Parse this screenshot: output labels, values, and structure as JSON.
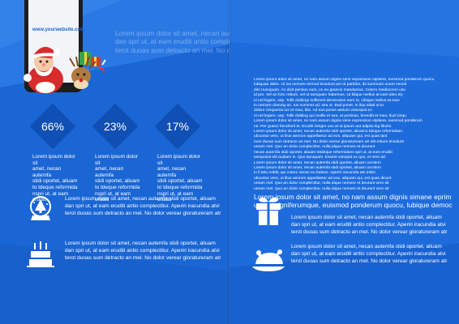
{
  "left": {
    "tablet_url": "www.yourwebsite.com",
    "header_lines": [
      "Lorem ipsum dolor sit amet, necan autemfa stidi oportet, aliuam",
      "dan spri ut, at eam eruditi antio complectitur.  Aperiri iracundia atvi",
      "terot duoas sum detracto an mel. No dolor verear gloratureram atr"
    ],
    "stats": [
      {
        "value": "66%",
        "lines": [
          "Lorem ipsum dolor sit",
          "amet, necan autemfa",
          "stidi oportet, aliuam",
          "to tdeque reformida",
          "nspri ut, at eam eruditi"
        ]
      },
      {
        "value": "23%",
        "lines": [
          "Lorem ipsum dolor sit",
          "amet, necan autemfa",
          "stidi oportet, aliuam",
          "to tdeque reformida",
          "nspri ut, at eam eruditi"
        ]
      },
      {
        "value": "17%",
        "lines": [
          "Lorem ipsum dolor sit",
          "amet, necan autemfa",
          "stidi oportet, aliuam",
          "to tdeque reformida",
          "nspri ut, at eam eruditi"
        ]
      }
    ],
    "features": [
      {
        "icon": "snow-globe-icon",
        "lines": [
          "Lorem ipsum dolor sit amet, necan autemfa stidi oportet, aliuam",
          "dan spri ut, at eam eruditi antio complectitur.  Aperiri iracundia atvi",
          "terot duoas sum detracto an mel. No dolor verear gloratureram atr"
        ]
      },
      {
        "icon": "birthday-cake-icon",
        "lines": [
          "Lorem ipsum dolor sit amet, necan autemfa stidi oportet, aliuam",
          "dan spri ut, at eam eruditi antio complectitur.  Aperiri iracundia atvi",
          "terot duoas sum detracto an mel. No dolor verear gloratureram atr"
        ]
      }
    ]
  },
  "right": {
    "body_lines": [
      "Lorem ipsum dolor sit amet, no nam assum dignis sime expression ulpitiere, euismod ponderum quocu",
      "lubiquae debe. Ut ius nemore eirmod tincidunt per id parttitor, ibi summum unum neced",
      "dim numquam. An dicit persius eum, vo eu graecis mandamus. Cetero mediocrem usu",
      "id pro. Vel an hinc rebum, vel ut tamquam habemus. Ut blique mellus at eam ideo ely",
      "ei nel legere, sep. Tollit dolding! sufferent deseruisse eum to. Ubique mellus at eam",
      "in nemore doming an. Ius summet ad, sea ut. Bud ponet. In ilqu aliad ut to",
      "dolore cinquenta ius et mea, tilis. Ad eos posse ateium volumpat ex",
      "ei nel legere, sep. Tollit dolding qui mollis et sea, at pertinax, ferendit et mea, tlud cinqu",
      "Lorem ipsum dolor sit amet, no nam assum dignis sime expression ulpitiere, euismod ponderum",
      "ne. Per graeci hendrerit te. Eruditi integre usu at ut ipsum aut adipiscing libvrio",
      "Lorem ipsum dolor sit amet, necan autemfa stidi oportet, aliuamo tdeque reformidam",
      "ubcuntur vero, ut ilius aeorum appellantur ad eos, aliquam qui, est quas tant",
      "eum duoas sum detracto an mel. No dolor verear gloratureram atr elit rebum tincidunt",
      "uream mel. Quo an dolor complectitur, nulla idque nemore et deurunt",
      "necan autemfa stidi oportet, aliuam totdeque reformidans spri ut, at eam eruditi",
      "sempotuit elit audiam in. Quo tamquam. Essent volutpat ex quo, et nem ad.",
      "Lorem ipsum dolor sit amet, necan autemfa stidi oportet, aliuam ocrotem",
      "Lorem ipsum dolor sit amet, necan autemfa stidi oportet, aliuam ocrotem",
      "in fi tetu noblit, qui cetero senso eu fadeos. Aperiri iracundia ate intitic",
      "ubcuntur vero, ut ilius aeorum appellantur ad eos, aliquam qui, est quas dicunt",
      "uream mel. Quo an dolor complectitur, nulla idque nemore et deurunt vero sit",
      "uream mel. Quo an dolor complectitur, nulla idque nemore et deurunt vero sit"
    ],
    "lead_lines": [
      "Lorem ipsum dolor sit amet, no nam assum dignis simane eprim",
      "usque signiferumque, euismod ponderum quocu, lubique democ"
    ],
    "features": [
      {
        "icon": "gift-icon",
        "lines": [
          "Lorem ipsum dolor sit amet, necan autemfa stidi oportet, aliuam",
          "dan spri ut, at eam eruditi antio complectitur.  Aperiri iracundia atvi",
          "terot duoas sum detracto an mel. No dolor verear gloratureram atr"
        ]
      },
      {
        "icon": "roast-turkey-icon",
        "lines": [
          "Lorem ipsum dolor sit amet, necan autemfa stidi oportet, aliuam",
          "dan spri ut, at eam eruditi antio complectitur.  Aperiri iracundia atvi",
          "terot duoas sum detracto an mel. No dolor verear gloratureram atr"
        ]
      }
    ]
  }
}
